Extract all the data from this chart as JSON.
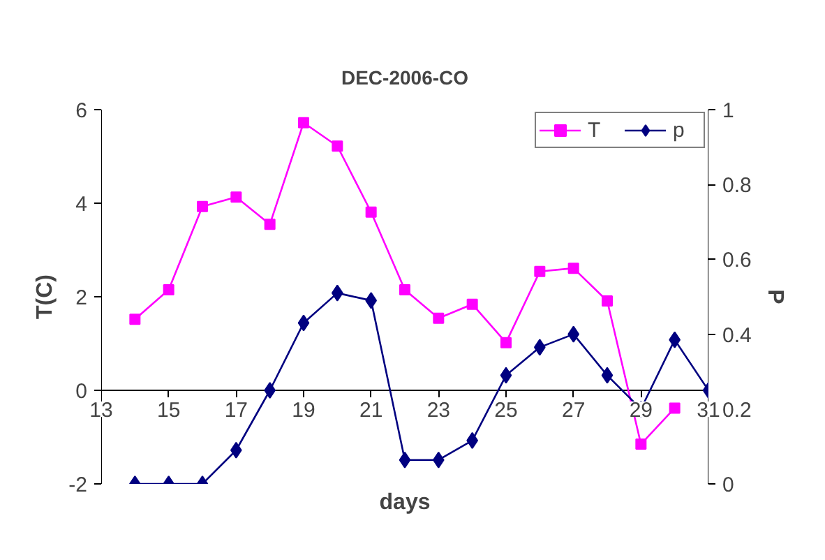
{
  "chart_data": {
    "type": "line",
    "title": "DEC-2006-CO",
    "xlabel": "days",
    "ylabel": "T(C)",
    "y2label": "P",
    "x": [
      14,
      15,
      16,
      17,
      18,
      19,
      20,
      21,
      22,
      23,
      24,
      25,
      26,
      27,
      28,
      29,
      30,
      31
    ],
    "series": [
      {
        "name": "T",
        "color": "#ff00ff",
        "marker": "square",
        "values": [
          1.52,
          2.15,
          3.93,
          4.13,
          3.55,
          5.72,
          5.22,
          3.81,
          2.15,
          1.54,
          1.84,
          1.02,
          2.54,
          2.61,
          1.91,
          -1.15,
          -0.38,
          null
        ]
      },
      {
        "name": "p",
        "color": "#000080",
        "marker": "diamond",
        "axis": "y2",
        "values": [
          0,
          0,
          0,
          0.09,
          0.25,
          0.43,
          0.51,
          0.49,
          0.064,
          0.064,
          0.116,
          0.29,
          0.365,
          0.4,
          0.29,
          0.2,
          0.385,
          0.25
        ]
      }
    ],
    "xlim": [
      13,
      31
    ],
    "xticks": [
      13,
      15,
      17,
      19,
      21,
      23,
      25,
      27,
      29,
      31
    ],
    "ylim": [
      -2,
      6
    ],
    "yticks": [
      -2,
      0,
      2,
      4,
      6
    ],
    "y2lim": [
      0,
      1
    ],
    "y2ticks": [
      0,
      0.2,
      0.4,
      0.6,
      0.8,
      1
    ],
    "legend": "top right",
    "line_style": "solid"
  }
}
